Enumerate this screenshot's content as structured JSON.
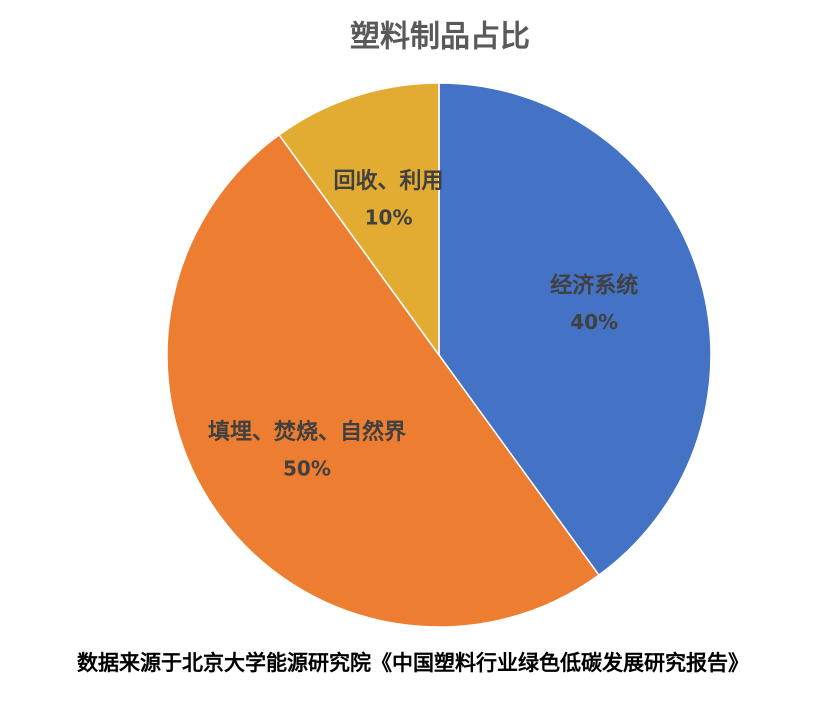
{
  "chart_data": {
    "type": "pie",
    "title": "塑料制品占比",
    "categories": [
      "经济系统",
      "填埋、焚烧、自然界",
      "回收、利用"
    ],
    "values": [
      40,
      50,
      10
    ],
    "value_labels": [
      "40%",
      "50%",
      "10%"
    ],
    "colors": [
      "#4472c4",
      "#ed7d31",
      "#e2ac32"
    ]
  },
  "footer": "数据来源于北京大学能源研究院《中国塑料行业绿色低碳发展研究报告》"
}
